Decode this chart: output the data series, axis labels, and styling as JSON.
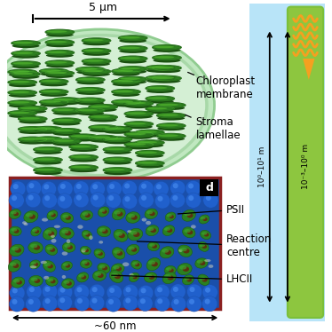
{
  "bg_color": "#ffffff",
  "chloro_outer_fill": "#d4efd4",
  "chloro_outer_border": "#a8d8a8",
  "chloro_inner_fill": "#b8e0b8",
  "grana_top": "#4aaa2a",
  "grana_mid": "#2e8020",
  "grana_dark": "#1a5010",
  "grana_edge": "#155010",
  "scale_bar_label": "5 μm",
  "chloroplast_membrane_label": "Chloroplast\nmembrane",
  "stroma_lamellae_label": "Stroma\nlamellae",
  "psii_label": "PSII",
  "reaction_centre_label": "Reaction\ncentre",
  "lhcii_label": "LHCII",
  "scale_nm_label": "~60 nm",
  "panel_d_label": "d",
  "scale1_label": "10⁰–10¹ m",
  "scale2_label": "10⁻³–10⁰ m",
  "sky_blue": "#87ceeb",
  "light_sky": "#b8e4f8",
  "right_green": "#7bbf3a",
  "right_green_fill": "#8dc63f",
  "arrow_color": "#000000",
  "red_border": "#8b2020",
  "mol_blue_dark": "#1a4faa",
  "mol_blue_mid": "#2060cc",
  "mol_blue_light": "#4488ee",
  "mol_green_dark": "#1a6010",
  "mol_green_mid": "#2a8020",
  "mol_green_light": "#40aa30",
  "mol_brown": "#5a3010",
  "mol_white": "#e8e8e0",
  "orange_sun": "#f5a020"
}
